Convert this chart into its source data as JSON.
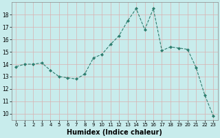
{
  "x": [
    0,
    1,
    2,
    3,
    4,
    5,
    6,
    7,
    8,
    9,
    10,
    11,
    12,
    13,
    14,
    15,
    16,
    17,
    18,
    19,
    20,
    21,
    22,
    23
  ],
  "y": [
    13.8,
    14.0,
    14.0,
    14.1,
    13.5,
    13.0,
    12.9,
    12.8,
    13.2,
    14.5,
    14.8,
    15.6,
    16.3,
    17.5,
    18.5,
    16.8,
    18.5,
    15.1,
    15.4,
    15.3,
    15.2,
    13.7,
    11.5,
    9.8
  ],
  "line_color": "#2e7d6e",
  "marker": "D",
  "marker_size": 2.0,
  "linewidth": 0.8,
  "linestyle": "--",
  "xlabel": "Humidex (Indice chaleur)",
  "xlabel_fontsize": 7,
  "xlabel_fontweight": "bold",
  "background_color": "#c8ecec",
  "grid_color": "#d9b0b0",
  "tick_color": "#000000",
  "ylim": [
    9.5,
    19.0
  ],
  "yticks": [
    10,
    11,
    12,
    13,
    14,
    15,
    16,
    17,
    18
  ],
  "xlim": [
    -0.5,
    23.5
  ],
  "xticks": [
    0,
    1,
    2,
    3,
    4,
    5,
    6,
    7,
    8,
    9,
    10,
    11,
    12,
    13,
    14,
    15,
    16,
    17,
    18,
    19,
    20,
    21,
    22,
    23
  ]
}
